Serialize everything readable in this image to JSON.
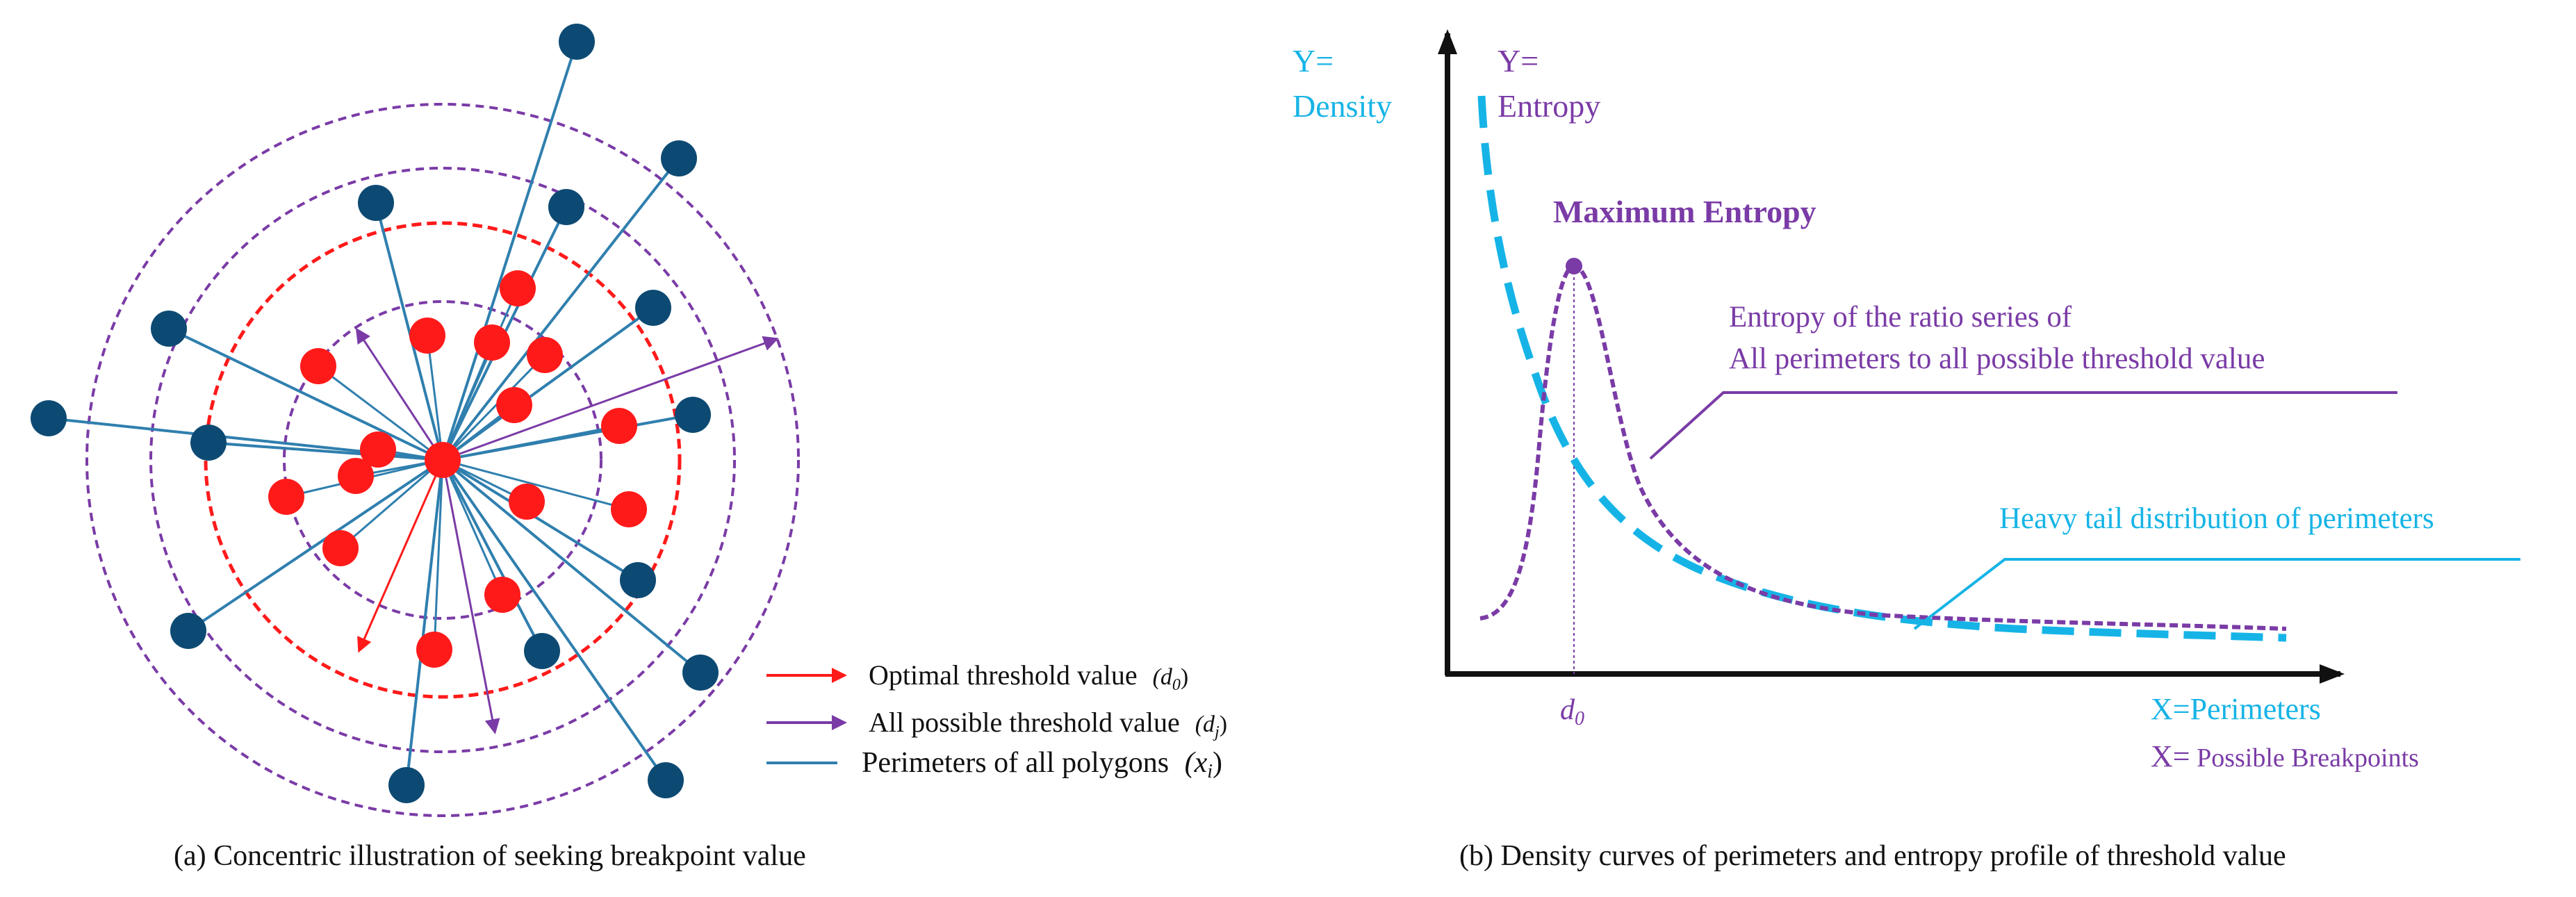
{
  "panel_a": {
    "caption": "(a)  Concentric illustration of seeking breakpoint value",
    "legend": {
      "optimal": {
        "label": "Optimal threshold value",
        "symbol": "(d",
        "sub": "0",
        "close": ")"
      },
      "possible": {
        "label": "All possible threshold value",
        "symbol": "(d",
        "sub": "j",
        "close": ")"
      },
      "perimeters": {
        "label": "Perimeters of all polygons",
        "symbol": "(x",
        "sub": "i",
        "close": ")"
      }
    }
  },
  "panel_b": {
    "caption": "(b)  Density curves  of perimeters and entropy profile of threshold value",
    "y_density": {
      "line1": "Y=",
      "line2": "Density"
    },
    "y_entropy": {
      "line1": "Y=",
      "line2": "Entropy"
    },
    "max_entropy": "Maximum Entropy",
    "entropy_note": {
      "line1": "Entropy of the ratio series of",
      "line2": "All perimeters to all possible threshold value"
    },
    "heavy_tail": "Heavy tail distribution of perimeters",
    "d0": {
      "symbol": "d",
      "sub": "0"
    },
    "x_perimeters": "X=Perimeters",
    "x_breakpoints": {
      "prefix": "X=",
      "text": " Possible Breakpoints"
    }
  },
  "colors": {
    "navy": "#0d4a73",
    "red": "#ff1a1a",
    "line": "#2f7fae",
    "purple": "#7a3ba6",
    "cyan": "#16b4e6",
    "axis": "#111111"
  }
}
